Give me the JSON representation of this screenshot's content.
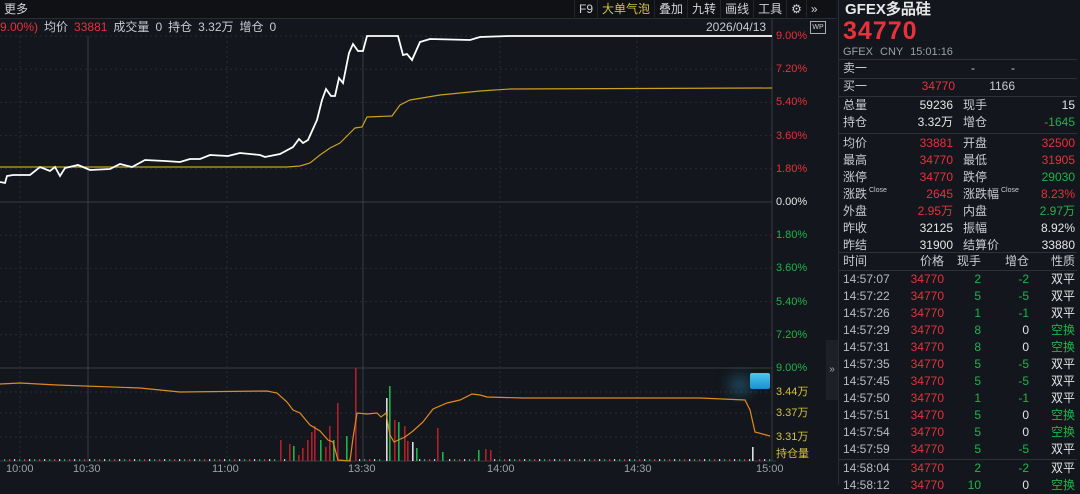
{
  "toolbar": {
    "more": "更多",
    "items": [
      "F9",
      "大单气泡",
      "叠加",
      "九转",
      "画线",
      "工具"
    ],
    "active_item": "大单气泡"
  },
  "infoline": {
    "pct": "9.00%)",
    "avg_label": "均价",
    "avg": "33881",
    "vol_label": "成交量",
    "vol": "0",
    "oi_label": "持仓",
    "oi": "3.32万",
    "oi_chg_label": "增仓",
    "oi_chg": "0"
  },
  "chart": {
    "date": "2026/04/13",
    "price_axis": [
      "9.00%",
      "7.20%",
      "5.40%",
      "3.60%",
      "1.80%",
      "0.00%",
      "1.80%",
      "3.60%",
      "5.40%",
      "7.20%",
      "9.00%"
    ],
    "oi_axis": [
      "3.44万",
      "3.37万",
      "3.31万",
      "持仓量"
    ],
    "time_axis": [
      "10:00",
      "10:30",
      "11:00",
      "13:30",
      "14:00",
      "14:30",
      "15:00"
    ],
    "colors": {
      "price": "#ffffff",
      "avg": "#c9a020",
      "oi": "#e08a1e",
      "up": "#e8313b",
      "down": "#1fb44a"
    }
  },
  "quote": {
    "title": "GFEX多品硅",
    "price": "34770",
    "exchange": "GFEX",
    "currency": "CNY",
    "time": "15:01:16",
    "ask1": {
      "label": "卖一",
      "price": "-",
      "vol": "-"
    },
    "bid1": {
      "label": "买一",
      "price": "34770",
      "vol": "1166"
    },
    "stats": [
      [
        "总量",
        "59236",
        "white",
        "现手",
        "15",
        "white"
      ],
      [
        "持仓",
        "3.32万",
        "white",
        "增仓",
        "-1645",
        "green"
      ],
      [
        "均价",
        "33881",
        "red",
        "开盘",
        "32500",
        "red"
      ],
      [
        "最高",
        "34770",
        "red",
        "最低",
        "31905",
        "red"
      ],
      [
        "涨停",
        "34770",
        "red",
        "跌停",
        "29030",
        "green"
      ],
      [
        "涨跌",
        "2645",
        "red",
        "涨跌幅",
        "8.23%",
        "red"
      ],
      [
        "外盘",
        "2.95万",
        "red",
        "内盘",
        "2.97万",
        "green"
      ],
      [
        "昨收",
        "32125",
        "white",
        "振幅",
        "8.92%",
        "white"
      ],
      [
        "昨结",
        "31900",
        "white",
        "结算价",
        "33880",
        "white"
      ]
    ],
    "close_tag": "Close"
  },
  "ticks": {
    "headers": [
      "时间",
      "价格",
      "现手",
      "增仓",
      "性质"
    ],
    "rows": [
      [
        "14:57:07",
        "34770",
        "2",
        "-2",
        "双平"
      ],
      [
        "14:57:22",
        "34770",
        "5",
        "-5",
        "双平"
      ],
      [
        "14:57:26",
        "34770",
        "1",
        "-1",
        "双平"
      ],
      [
        "14:57:29",
        "34770",
        "8",
        "0",
        "空换"
      ],
      [
        "14:57:31",
        "34770",
        "8",
        "0",
        "空换"
      ],
      [
        "14:57:35",
        "34770",
        "5",
        "-5",
        "双平"
      ],
      [
        "14:57:45",
        "34770",
        "5",
        "-5",
        "双平"
      ],
      [
        "14:57:50",
        "34770",
        "1",
        "-1",
        "双平"
      ],
      [
        "14:57:51",
        "34770",
        "5",
        "0",
        "空换"
      ],
      [
        "14:57:54",
        "34770",
        "5",
        "0",
        "空换"
      ],
      [
        "14:57:59",
        "34770",
        "5",
        "-5",
        "双平"
      ],
      [
        "14:58:04",
        "34770",
        "2",
        "-2",
        "双平"
      ],
      [
        "14:58:12",
        "34770",
        "10",
        "0",
        "空换"
      ]
    ]
  }
}
